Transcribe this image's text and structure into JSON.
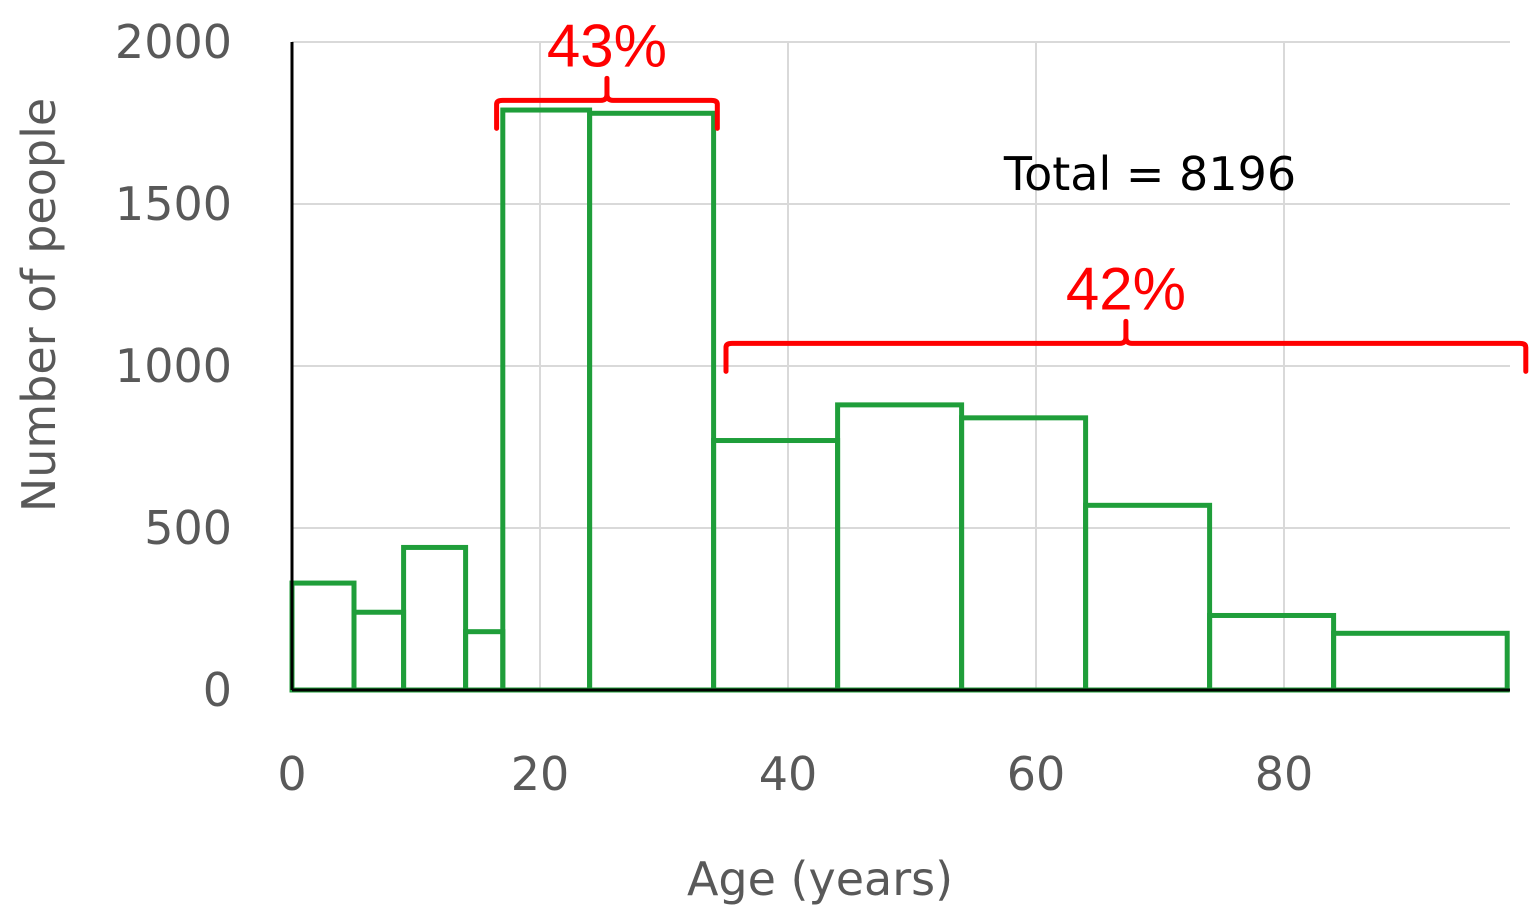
{
  "chart_data": {
    "type": "bar",
    "title": "",
    "xlabel": "Age (years)",
    "ylabel": "Number of people",
    "xlim": [
      0,
      98
    ],
    "ylim": [
      0,
      2000
    ],
    "x_ticks": [
      "0",
      "20",
      "40",
      "60",
      "80"
    ],
    "y_ticks": [
      "0",
      "500",
      "1000",
      "1500",
      "2000"
    ],
    "grid": true,
    "bins": [
      {
        "x0": 0,
        "x1": 5,
        "value": 330
      },
      {
        "x0": 5,
        "x1": 9,
        "value": 240
      },
      {
        "x0": 9,
        "x1": 14,
        "value": 440
      },
      {
        "x0": 14,
        "x1": 17,
        "value": 180
      },
      {
        "x0": 17,
        "x1": 24,
        "value": 1790
      },
      {
        "x0": 24,
        "x1": 34,
        "value": 1780
      },
      {
        "x0": 34,
        "x1": 44,
        "value": 770
      },
      {
        "x0": 44,
        "x1": 54,
        "value": 880
      },
      {
        "x0": 54,
        "x1": 64,
        "value": 840
      },
      {
        "x0": 64,
        "x1": 74,
        "value": 570
      },
      {
        "x0": 74,
        "x1": 84,
        "value": 230
      },
      {
        "x0": 84,
        "x1": 98,
        "value": 175
      }
    ],
    "annotations": {
      "total": "Total = 8196",
      "brackets": [
        {
          "label": "43%",
          "x0": 16.5,
          "x1": 34.3,
          "y": 1820,
          "color": "#ff0000"
        },
        {
          "label": "42%",
          "x0": 35,
          "x1": 99.5,
          "y": 1070,
          "color": "#ff0000"
        }
      ]
    },
    "colors": {
      "bars": "#1f9e3a",
      "annotation": "#ff0000",
      "grid": "#d9d9d9",
      "axis": "#000000",
      "text": "#595959"
    }
  }
}
